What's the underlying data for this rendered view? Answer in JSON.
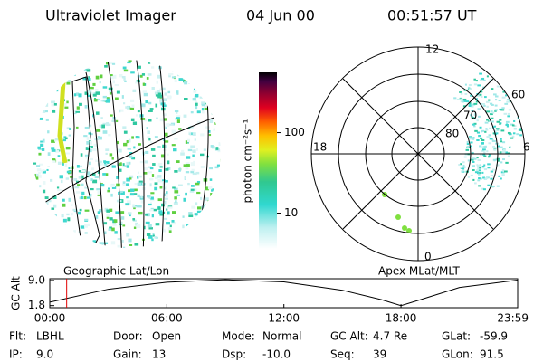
{
  "header": {
    "title": "Ultraviolet Imager",
    "date": "04 Jun 00",
    "time": "00:51:57 UT"
  },
  "colorbar": {
    "label": "photon cm⁻²s⁻¹",
    "scale": "log",
    "lim": [
      3.6,
      560
    ],
    "ticks": [
      10,
      100
    ]
  },
  "geographic_panel": {
    "label": "Geographic Lat/Lon"
  },
  "polar_panel": {
    "label": "Apex MLat/MLT",
    "mlt_labels": [
      "12",
      "18",
      "6",
      "0"
    ],
    "lat_labels": [
      "60",
      "70",
      "80"
    ]
  },
  "altitude_plot": {
    "ylabel": "GC Alt",
    "ylim": [
      1.2,
      9.5
    ],
    "yticks": [
      {
        "value": 9,
        "label": "9.0"
      },
      1.8
    ],
    "xlim": [
      0,
      23.98
    ],
    "xticks": [
      {
        "value": 0,
        "label": "00:00"
      },
      {
        "value": 6,
        "label": "06:00"
      },
      {
        "value": 12,
        "label": "12:00"
      },
      {
        "value": 18,
        "label": "18:00"
      },
      {
        "value": 23.98,
        "label": "23:59"
      }
    ],
    "x": [
      0,
      3,
      6,
      9,
      12,
      15,
      17,
      18,
      19,
      21,
      23.98
    ],
    "values": [
      2.8,
      6.5,
      8.5,
      9.2,
      8.6,
      6.2,
      3.5,
      1.8,
      3.5,
      7.0,
      9.1
    ],
    "marker": 0.866,
    "marker_color": "#e00000",
    "color": "#000000"
  },
  "status": [
    [
      {
        "label": "Flt:",
        "value": "LBHL"
      },
      {
        "label": "Door:",
        "value": "Open"
      },
      {
        "label": "Mode:",
        "value": "Normal"
      },
      {
        "label": "GC Alt:",
        "value": "4.7 Re"
      },
      {
        "label": "GLat:",
        "value": "-59.9"
      }
    ],
    [
      {
        "label": "IP:",
        "value": "9.0"
      },
      {
        "label": "Gain:",
        "value": "13"
      },
      {
        "label": "Dsp:",
        "value": "-10.0"
      },
      {
        "label": "Seq:",
        "value": "39"
      },
      {
        "label": "GLon:",
        "value": "91.5"
      }
    ]
  ]
}
